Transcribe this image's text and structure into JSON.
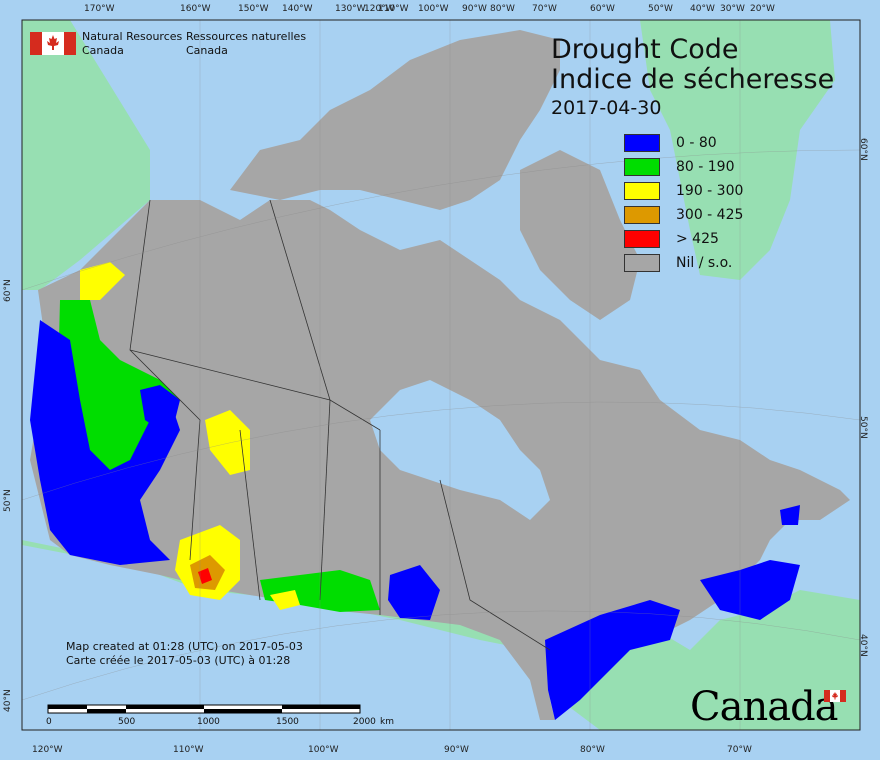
{
  "map": {
    "title_en": "Drought Code",
    "title_fr": "Indice de sécheresse",
    "date": "2017-04-30",
    "legend": [
      {
        "label": "0 - 80",
        "color": "#0000ff"
      },
      {
        "label": "80 - 190",
        "color": "#00dd00"
      },
      {
        "label": "190 - 300",
        "color": "#ffff00"
      },
      {
        "label": "300 - 425",
        "color": "#dd9900"
      },
      {
        "label": "> 425",
        "color": "#ff0000"
      },
      {
        "label": "Nil / s.o.",
        "color": "#a6a6a6"
      }
    ],
    "colors": {
      "ocean": "#a8d1f2",
      "land_outside": "#97dfb2",
      "canada_nil": "#a6a6a6",
      "border": "#333333"
    }
  },
  "agency": {
    "name_en_1": "Natural Resources",
    "name_en_2": "Canada",
    "name_fr_1": "Ressources naturelles",
    "name_fr_2": "Canada",
    "flag_icon": "canada-flag-icon"
  },
  "graticule": {
    "top": [
      "170°W",
      "160°W",
      "150°W",
      "140°W",
      "130°W",
      "120°W",
      "110°W",
      "100°W",
      "90°W",
      "80°W",
      "70°W",
      "60°W",
      "50°W",
      "40°W",
      "30°W",
      "20°W"
    ],
    "bottom": [
      "120°W",
      "110°W",
      "100°W",
      "90°W",
      "80°W",
      "70°W"
    ],
    "left": [
      "60°N",
      "50°N",
      "40°N"
    ],
    "right": [
      "60°N",
      "50°N",
      "40°N"
    ]
  },
  "footer": {
    "created_en": "Map created at 01:28 (UTC) on 2017-05-03",
    "created_fr": "Carte créée le 2017-05-03 (UTC) à 01:28",
    "scale_ticks": [
      "0",
      "500",
      "1000",
      "1500",
      "2000"
    ],
    "scale_unit": "km",
    "wordmark": "Canada"
  }
}
